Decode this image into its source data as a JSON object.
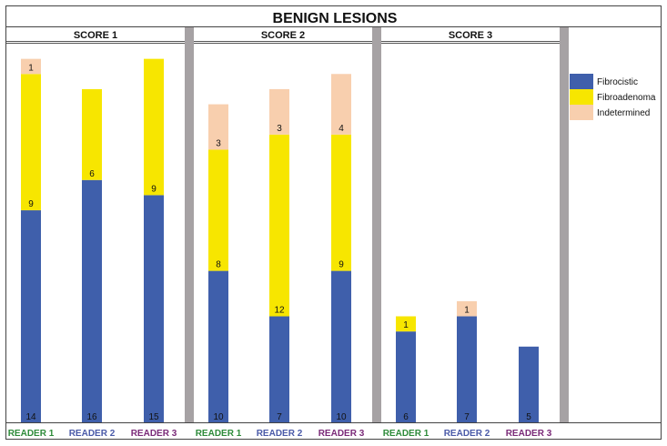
{
  "chart_data": {
    "type": "bar",
    "stacked": true,
    "title": "BENIGN LESIONS",
    "panels": [
      "SCORE 1",
      "SCORE 2",
      "SCORE 3"
    ],
    "categories": [
      "READER 1",
      "READER 2",
      "READER 3"
    ],
    "category_colors": [
      "#2e8b3a",
      "#4a5aa8",
      "#7a2a78"
    ],
    "series": [
      {
        "name": "Fibrocistic",
        "color": "#3f5fab",
        "values": [
          [
            14,
            16,
            15
          ],
          [
            10,
            7,
            10
          ],
          [
            6,
            7,
            5
          ]
        ]
      },
      {
        "name": "Fibroadenoma",
        "color": "#f7e600",
        "values": [
          [
            9,
            6,
            9
          ],
          [
            8,
            12,
            9
          ],
          [
            1,
            0,
            0
          ]
        ]
      },
      {
        "name": "Indetermined",
        "color": "#f8cfae",
        "values": [
          [
            1,
            0,
            0
          ],
          [
            3,
            3,
            4
          ],
          [
            0,
            1,
            0
          ]
        ]
      }
    ],
    "ylim": [
      0,
      25
    ],
    "legend": "right",
    "grid": false
  }
}
